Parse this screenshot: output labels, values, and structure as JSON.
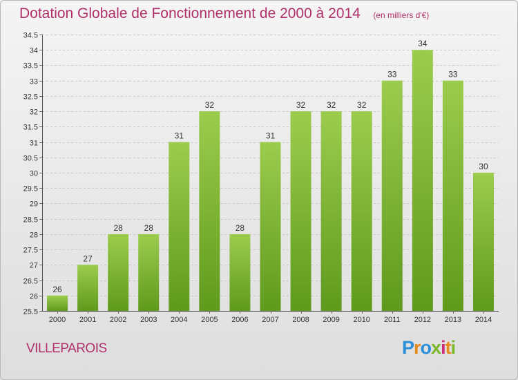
{
  "header": {
    "title": "Dotation Globale de Fonctionnement de 2000 à 2014",
    "subtitle": "(en milliers d'€)"
  },
  "place": "VILLEPAROIS",
  "brand": "Proxiti",
  "colors": {
    "title": "#b0306a",
    "bar_top": "#9ccc4e",
    "bar_bottom": "#5f9a1c",
    "grid": "#c8c8c8"
  },
  "chart_data": {
    "type": "bar",
    "categories": [
      "2000",
      "2001",
      "2002",
      "2003",
      "2004",
      "2005",
      "2006",
      "2007",
      "2008",
      "2009",
      "2010",
      "2011",
      "2012",
      "2013",
      "2014"
    ],
    "values": [
      26,
      27,
      28,
      28,
      31,
      32,
      28,
      31,
      32,
      32,
      32,
      33,
      34,
      33,
      30
    ],
    "data_labels": [
      "26",
      "27",
      "28",
      "28",
      "31",
      "32",
      "28",
      "31",
      "32",
      "32",
      "32",
      "33",
      "34",
      "33",
      "30"
    ],
    "ylim": [
      25.5,
      34.5
    ],
    "yticks": [
      25.5,
      26,
      26.5,
      27,
      27.5,
      28,
      28.5,
      29,
      29.5,
      30,
      30.5,
      31,
      31.5,
      32,
      32.5,
      33,
      33.5,
      34,
      34.5
    ],
    "grid": true,
    "xlabel": "",
    "ylabel": ""
  }
}
